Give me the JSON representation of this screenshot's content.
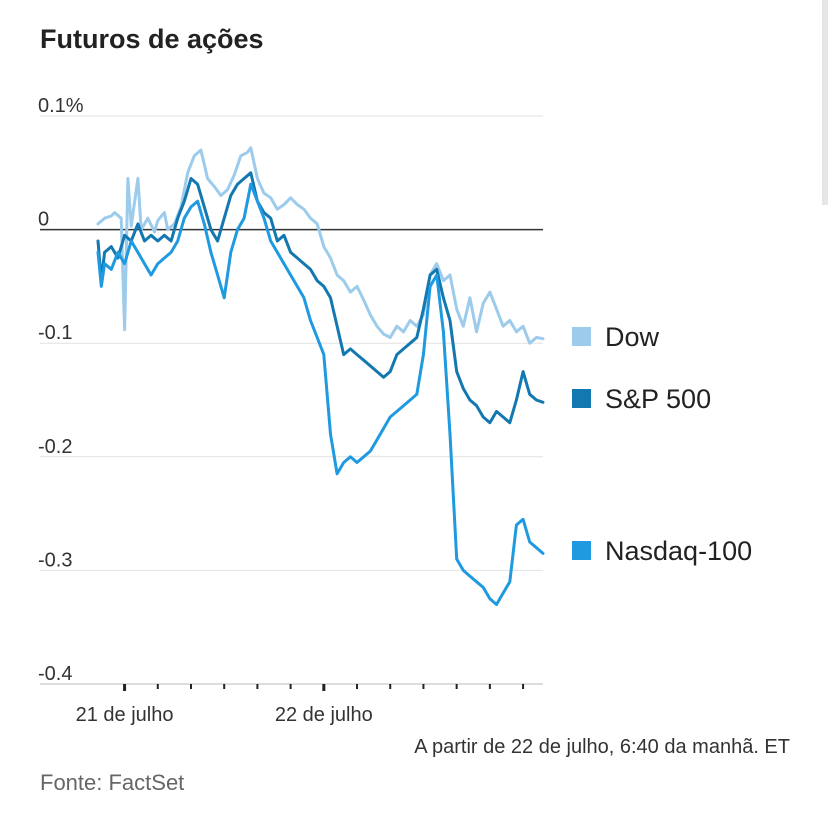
{
  "chart_data": {
    "type": "line",
    "title": "Futuros de ações",
    "xlabel": "",
    "ylabel": "",
    "ylim": [
      -0.4,
      0.1
    ],
    "y_ticks": [
      0.1,
      0,
      -0.1,
      -0.2,
      -0.3,
      -0.4
    ],
    "y_tick_labels": [
      "0.1%",
      "0",
      "-0.1",
      "-0.2",
      "-0.3",
      "-0.4"
    ],
    "x_tick_labels": [
      "21 de julho",
      "22 de julho"
    ],
    "legend_position": "right",
    "series": [
      {
        "name": "Dow",
        "color": "#9ccbec",
        "points": [
          [
            0,
            0.005
          ],
          [
            2,
            0.01
          ],
          [
            4,
            0.012
          ],
          [
            5,
            0.015
          ],
          [
            7,
            0.01
          ],
          [
            8,
            -0.088
          ],
          [
            9,
            0.045
          ],
          [
            10,
            0.003
          ],
          [
            12,
            0.045
          ],
          [
            13,
            0.0
          ],
          [
            15,
            0.01
          ],
          [
            17,
            -0.002
          ],
          [
            18,
            0.008
          ],
          [
            20,
            0.015
          ],
          [
            21,
            0.0
          ],
          [
            23,
            0.005
          ],
          [
            25,
            0.02
          ],
          [
            27,
            0.05
          ],
          [
            29,
            0.065
          ],
          [
            31,
            0.07
          ],
          [
            33,
            0.045
          ],
          [
            35,
            0.038
          ],
          [
            37,
            0.03
          ],
          [
            39,
            0.035
          ],
          [
            41,
            0.048
          ],
          [
            43,
            0.065
          ],
          [
            45,
            0.068
          ],
          [
            46,
            0.072
          ],
          [
            48,
            0.045
          ],
          [
            50,
            0.032
          ],
          [
            52,
            0.028
          ],
          [
            54,
            0.018
          ],
          [
            56,
            0.022
          ],
          [
            58,
            0.028
          ],
          [
            60,
            0.022
          ],
          [
            62,
            0.018
          ],
          [
            64,
            0.01
          ],
          [
            66,
            0.005
          ],
          [
            68,
            -0.015
          ],
          [
            70,
            -0.025
          ],
          [
            72,
            -0.04
          ],
          [
            74,
            -0.045
          ],
          [
            76,
            -0.055
          ],
          [
            78,
            -0.05
          ],
          [
            80,
            -0.062
          ],
          [
            82,
            -0.075
          ],
          [
            84,
            -0.085
          ],
          [
            86,
            -0.092
          ],
          [
            88,
            -0.095
          ],
          [
            90,
            -0.085
          ],
          [
            92,
            -0.09
          ],
          [
            94,
            -0.08
          ],
          [
            96,
            -0.085
          ],
          [
            98,
            -0.075
          ],
          [
            100,
            -0.04
          ],
          [
            102,
            -0.03
          ],
          [
            104,
            -0.045
          ],
          [
            106,
            -0.04
          ],
          [
            108,
            -0.07
          ],
          [
            110,
            -0.085
          ],
          [
            112,
            -0.06
          ],
          [
            114,
            -0.09
          ],
          [
            116,
            -0.065
          ],
          [
            118,
            -0.055
          ],
          [
            120,
            -0.07
          ],
          [
            122,
            -0.085
          ],
          [
            124,
            -0.08
          ],
          [
            126,
            -0.09
          ],
          [
            128,
            -0.085
          ],
          [
            130,
            -0.1
          ],
          [
            132,
            -0.095
          ],
          [
            134,
            -0.096
          ]
        ]
      },
      {
        "name": "S&P 500",
        "color": "#1478b0",
        "points": [
          [
            0,
            -0.01
          ],
          [
            1,
            -0.045
          ],
          [
            2,
            -0.02
          ],
          [
            4,
            -0.015
          ],
          [
            6,
            -0.025
          ],
          [
            8,
            -0.005
          ],
          [
            10,
            -0.01
          ],
          [
            12,
            0.005
          ],
          [
            14,
            -0.01
          ],
          [
            16,
            -0.005
          ],
          [
            18,
            -0.01
          ],
          [
            20,
            -0.005
          ],
          [
            22,
            -0.01
          ],
          [
            24,
            0.01
          ],
          [
            26,
            0.025
          ],
          [
            28,
            0.045
          ],
          [
            30,
            0.04
          ],
          [
            32,
            0.02
          ],
          [
            34,
            0.0
          ],
          [
            36,
            -0.01
          ],
          [
            38,
            0.01
          ],
          [
            40,
            0.03
          ],
          [
            42,
            0.04
          ],
          [
            44,
            0.045
          ],
          [
            46,
            0.05
          ],
          [
            48,
            0.025
          ],
          [
            50,
            0.015
          ],
          [
            52,
            0.01
          ],
          [
            54,
            -0.01
          ],
          [
            56,
            -0.005
          ],
          [
            58,
            -0.02
          ],
          [
            60,
            -0.025
          ],
          [
            62,
            -0.03
          ],
          [
            64,
            -0.035
          ],
          [
            66,
            -0.045
          ],
          [
            68,
            -0.05
          ],
          [
            70,
            -0.06
          ],
          [
            72,
            -0.085
          ],
          [
            74,
            -0.11
          ],
          [
            76,
            -0.105
          ],
          [
            78,
            -0.11
          ],
          [
            80,
            -0.115
          ],
          [
            82,
            -0.12
          ],
          [
            84,
            -0.125
          ],
          [
            86,
            -0.13
          ],
          [
            88,
            -0.125
          ],
          [
            90,
            -0.11
          ],
          [
            92,
            -0.105
          ],
          [
            94,
            -0.1
          ],
          [
            96,
            -0.095
          ],
          [
            98,
            -0.07
          ],
          [
            100,
            -0.04
          ],
          [
            102,
            -0.035
          ],
          [
            104,
            -0.06
          ],
          [
            106,
            -0.08
          ],
          [
            108,
            -0.125
          ],
          [
            110,
            -0.14
          ],
          [
            112,
            -0.15
          ],
          [
            114,
            -0.155
          ],
          [
            116,
            -0.165
          ],
          [
            118,
            -0.17
          ],
          [
            120,
            -0.16
          ],
          [
            122,
            -0.165
          ],
          [
            124,
            -0.17
          ],
          [
            126,
            -0.15
          ],
          [
            128,
            -0.125
          ],
          [
            130,
            -0.145
          ],
          [
            132,
            -0.15
          ],
          [
            134,
            -0.152
          ]
        ]
      },
      {
        "name": "Nasdaq-100",
        "color": "#1f9ae0",
        "points": [
          [
            0,
            -0.02
          ],
          [
            1,
            -0.05
          ],
          [
            2,
            -0.03
          ],
          [
            4,
            -0.035
          ],
          [
            6,
            -0.02
          ],
          [
            8,
            -0.03
          ],
          [
            10,
            -0.01
          ],
          [
            12,
            -0.02
          ],
          [
            14,
            -0.03
          ],
          [
            16,
            -0.04
          ],
          [
            18,
            -0.03
          ],
          [
            20,
            -0.025
          ],
          [
            22,
            -0.02
          ],
          [
            24,
            -0.01
          ],
          [
            26,
            0.01
          ],
          [
            28,
            0.02
          ],
          [
            30,
            0.025
          ],
          [
            32,
            0.005
          ],
          [
            34,
            -0.02
          ],
          [
            36,
            -0.04
          ],
          [
            38,
            -0.06
          ],
          [
            40,
            -0.02
          ],
          [
            42,
            0.0
          ],
          [
            44,
            0.01
          ],
          [
            46,
            0.04
          ],
          [
            48,
            0.025
          ],
          [
            50,
            0.01
          ],
          [
            52,
            -0.01
          ],
          [
            54,
            -0.02
          ],
          [
            56,
            -0.03
          ],
          [
            58,
            -0.04
          ],
          [
            60,
            -0.05
          ],
          [
            62,
            -0.06
          ],
          [
            64,
            -0.08
          ],
          [
            66,
            -0.095
          ],
          [
            68,
            -0.11
          ],
          [
            70,
            -0.18
          ],
          [
            72,
            -0.215
          ],
          [
            74,
            -0.205
          ],
          [
            76,
            -0.2
          ],
          [
            78,
            -0.205
          ],
          [
            80,
            -0.2
          ],
          [
            82,
            -0.195
          ],
          [
            84,
            -0.185
          ],
          [
            86,
            -0.175
          ],
          [
            88,
            -0.165
          ],
          [
            90,
            -0.16
          ],
          [
            92,
            -0.155
          ],
          [
            94,
            -0.15
          ],
          [
            96,
            -0.145
          ],
          [
            98,
            -0.11
          ],
          [
            100,
            -0.05
          ],
          [
            102,
            -0.04
          ],
          [
            104,
            -0.09
          ],
          [
            106,
            -0.18
          ],
          [
            108,
            -0.29
          ],
          [
            110,
            -0.3
          ],
          [
            112,
            -0.305
          ],
          [
            114,
            -0.31
          ],
          [
            116,
            -0.315
          ],
          [
            118,
            -0.325
          ],
          [
            120,
            -0.33
          ],
          [
            122,
            -0.32
          ],
          [
            124,
            -0.31
          ],
          [
            126,
            -0.26
          ],
          [
            128,
            -0.255
          ],
          [
            130,
            -0.275
          ],
          [
            132,
            -0.28
          ],
          [
            134,
            -0.285
          ]
        ]
      }
    ],
    "x_domain": [
      0,
      134
    ],
    "x_ticks": [
      8,
      18,
      28,
      38,
      48,
      58,
      68,
      78,
      88,
      98,
      108,
      118,
      128
    ],
    "x_major_ticks": [
      8,
      68
    ]
  },
  "note": "A partir de 22 de julho, 6:40 da manhã. ET",
  "source": "Fonte: FactSet"
}
